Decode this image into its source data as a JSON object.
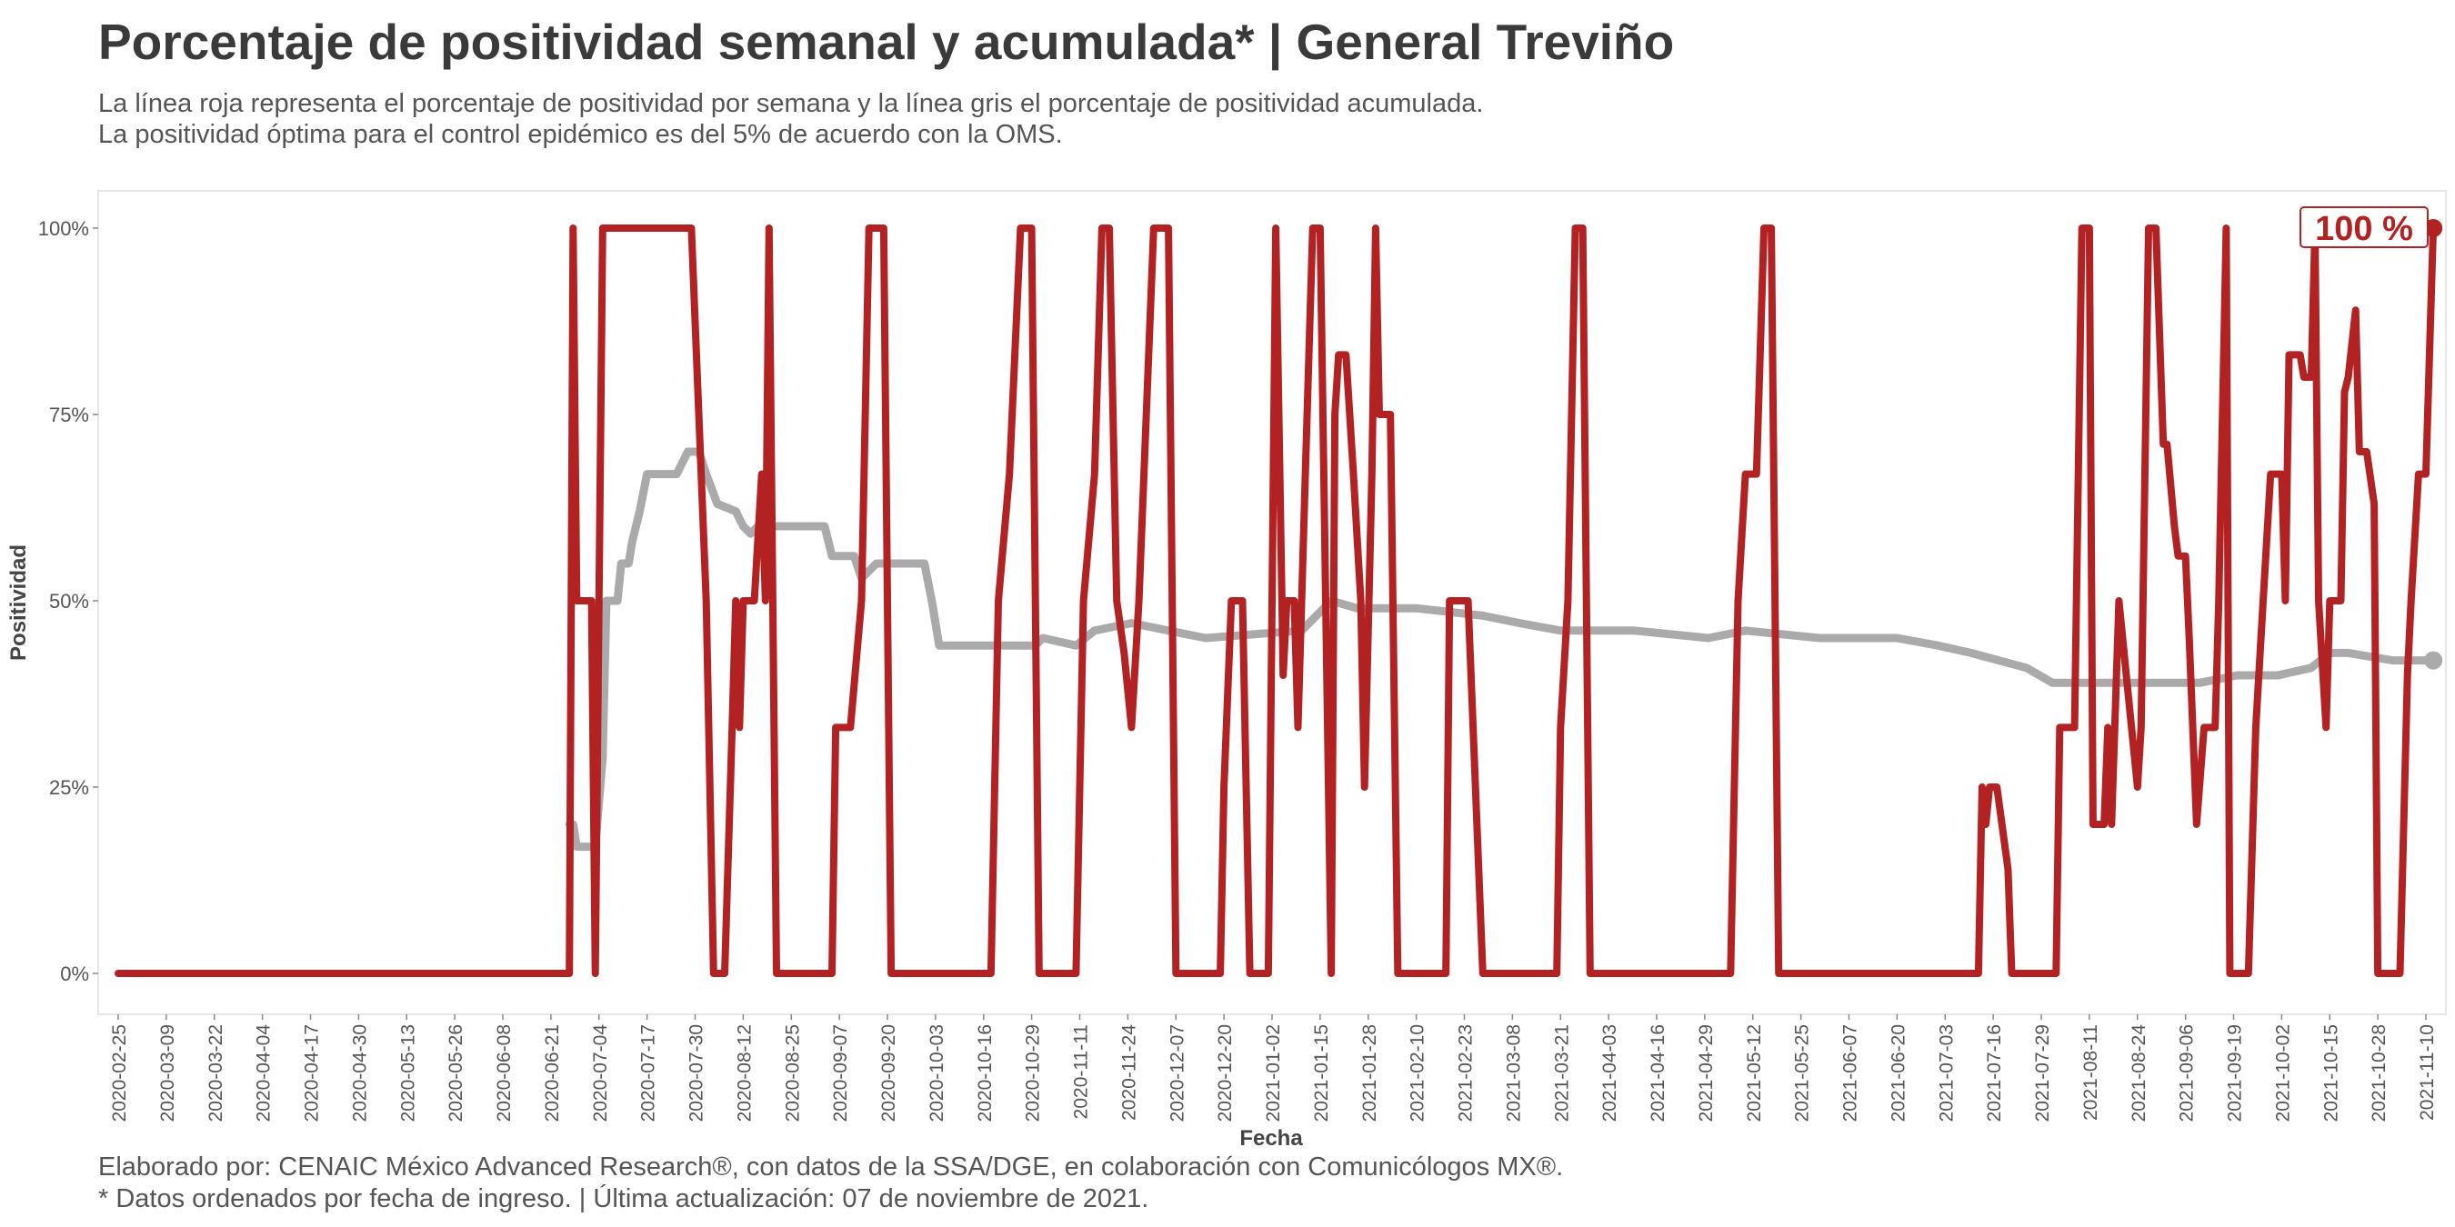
{
  "header": {
    "title": "Porcentaje de positividad semanal y acumulada* | General Treviño",
    "subtitle_line1": "La línea roja representa el porcentaje de positividad por semana y la línea gris el porcentaje de positividad acumulada.",
    "subtitle_line2": "La positividad óptima para el control epidémico es del 5% de acuerdo con la OMS."
  },
  "footer": {
    "caption_line1": "Elaborado por: CENAIC México Advanced Research®, con datos de la SSA/DGE, en colaboración con Comunicólogos MX®.",
    "caption_line2": "* Datos ordenados por fecha de ingreso. | Última actualización: 07 de noviembre de 2021."
  },
  "colors": {
    "weekly": "#b22222",
    "cumulative": "#aaaaaa",
    "panel_border": "#e6e6e6",
    "label_text": "#b22222"
  },
  "chart_data": {
    "type": "line",
    "title": "Porcentaje de positividad semanal y acumulada* | General Treviño",
    "xlabel": "Fecha",
    "ylabel": "Positividad",
    "ylim": [
      0,
      100
    ],
    "xlim": [
      "2020-02-25",
      "2021-11-10"
    ],
    "y_ticks": [
      0,
      25,
      50,
      75,
      100
    ],
    "y_tick_labels": [
      "0%",
      "25%",
      "50%",
      "75%",
      "100%"
    ],
    "x_tick_labels": [
      "2020-02-25",
      "2020-03-09",
      "2020-03-22",
      "2020-04-04",
      "2020-04-17",
      "2020-04-30",
      "2020-05-13",
      "2020-05-26",
      "2020-06-08",
      "2020-06-21",
      "2020-07-04",
      "2020-07-17",
      "2020-07-30",
      "2020-08-12",
      "2020-08-25",
      "2020-09-07",
      "2020-09-20",
      "2020-10-03",
      "2020-10-16",
      "2020-10-29",
      "2020-11-11",
      "2020-11-24",
      "2020-12-07",
      "2020-12-20",
      "2021-01-02",
      "2021-01-15",
      "2021-01-28",
      "2021-02-10",
      "2021-02-23",
      "2021-03-08",
      "2021-03-21",
      "2021-04-03",
      "2021-04-16",
      "2021-04-29",
      "2021-05-12",
      "2021-05-25",
      "2021-06-07",
      "2021-06-20",
      "2021-07-03",
      "2021-07-16",
      "2021-07-29",
      "2021-08-11",
      "2021-08-24",
      "2021-09-06",
      "2021-09-19",
      "2021-10-02",
      "2021-10-15",
      "2021-10-28",
      "2021-11-10"
    ],
    "end_label": "100 %",
    "legend": "none",
    "grid": false,
    "series": [
      {
        "name": "semanal",
        "color": "#b22222",
        "points": [
          [
            "2020-02-25",
            0
          ],
          [
            "2020-06-26",
            0
          ],
          [
            "2020-06-27",
            100
          ],
          [
            "2020-06-28",
            50
          ],
          [
            "2020-07-02",
            50
          ],
          [
            "2020-07-03",
            0
          ],
          [
            "2020-07-05",
            100
          ],
          [
            "2020-07-29",
            100
          ],
          [
            "2020-08-02",
            50
          ],
          [
            "2020-08-04",
            0
          ],
          [
            "2020-08-07",
            0
          ],
          [
            "2020-08-09",
            33
          ],
          [
            "2020-08-10",
            50
          ],
          [
            "2020-08-11",
            33
          ],
          [
            "2020-08-12",
            50
          ],
          [
            "2020-08-15",
            50
          ],
          [
            "2020-08-17",
            67
          ],
          [
            "2020-08-18",
            50
          ],
          [
            "2020-08-19",
            100
          ],
          [
            "2020-08-21",
            0
          ],
          [
            "2020-09-05",
            0
          ],
          [
            "2020-09-06",
            33
          ],
          [
            "2020-09-10",
            33
          ],
          [
            "2020-09-13",
            50
          ],
          [
            "2020-09-15",
            100
          ],
          [
            "2020-09-19",
            100
          ],
          [
            "2020-09-21",
            0
          ],
          [
            "2020-10-18",
            0
          ],
          [
            "2020-10-20",
            50
          ],
          [
            "2020-10-23",
            67
          ],
          [
            "2020-10-26",
            100
          ],
          [
            "2020-10-29",
            100
          ],
          [
            "2020-10-31",
            0
          ],
          [
            "2020-11-10",
            0
          ],
          [
            "2020-11-12",
            50
          ],
          [
            "2020-11-15",
            67
          ],
          [
            "2020-11-17",
            100
          ],
          [
            "2020-11-19",
            100
          ],
          [
            "2020-11-21",
            50
          ],
          [
            "2020-11-23",
            43
          ],
          [
            "2020-11-25",
            33
          ],
          [
            "2020-11-27",
            50
          ],
          [
            "2020-11-29",
            75
          ],
          [
            "2020-12-01",
            100
          ],
          [
            "2020-12-05",
            100
          ],
          [
            "2020-12-07",
            0
          ],
          [
            "2020-12-19",
            0
          ],
          [
            "2020-12-20",
            25
          ],
          [
            "2020-12-22",
            50
          ],
          [
            "2020-12-25",
            50
          ],
          [
            "2020-12-27",
            0
          ],
          [
            "2021-01-01",
            0
          ],
          [
            "2021-01-03",
            100
          ],
          [
            "2021-01-05",
            40
          ],
          [
            "2021-01-06",
            50
          ],
          [
            "2021-01-08",
            50
          ],
          [
            "2021-01-09",
            33
          ],
          [
            "2021-01-11",
            67
          ],
          [
            "2021-01-13",
            100
          ],
          [
            "2021-01-15",
            100
          ],
          [
            "2021-01-18",
            0
          ],
          [
            "2021-01-19",
            75
          ],
          [
            "2021-01-20",
            83
          ],
          [
            "2021-01-22",
            83
          ],
          [
            "2021-01-24",
            67
          ],
          [
            "2021-01-26",
            50
          ],
          [
            "2021-01-27",
            25
          ],
          [
            "2021-01-29",
            67
          ],
          [
            "2021-01-30",
            100
          ],
          [
            "2021-01-31",
            75
          ],
          [
            "2021-02-03",
            75
          ],
          [
            "2021-02-05",
            0
          ],
          [
            "2021-02-18",
            0
          ],
          [
            "2021-02-19",
            50
          ],
          [
            "2021-02-24",
            50
          ],
          [
            "2021-02-26",
            25
          ],
          [
            "2021-02-28",
            0
          ],
          [
            "2021-03-20",
            0
          ],
          [
            "2021-03-21",
            33
          ],
          [
            "2021-03-23",
            50
          ],
          [
            "2021-03-25",
            100
          ],
          [
            "2021-03-27",
            100
          ],
          [
            "2021-03-29",
            0
          ],
          [
            "2021-05-06",
            0
          ],
          [
            "2021-05-08",
            50
          ],
          [
            "2021-05-10",
            67
          ],
          [
            "2021-05-13",
            67
          ],
          [
            "2021-05-15",
            100
          ],
          [
            "2021-05-17",
            100
          ],
          [
            "2021-05-19",
            0
          ],
          [
            "2021-07-12",
            0
          ],
          [
            "2021-07-13",
            25
          ],
          [
            "2021-07-14",
            20
          ],
          [
            "2021-07-15",
            25
          ],
          [
            "2021-07-17",
            25
          ],
          [
            "2021-07-20",
            14
          ],
          [
            "2021-07-21",
            0
          ],
          [
            "2021-08-02",
            0
          ],
          [
            "2021-08-03",
            33
          ],
          [
            "2021-08-07",
            33
          ],
          [
            "2021-08-09",
            100
          ],
          [
            "2021-08-11",
            100
          ],
          [
            "2021-08-12",
            20
          ],
          [
            "2021-08-15",
            20
          ],
          [
            "2021-08-16",
            33
          ],
          [
            "2021-08-17",
            20
          ],
          [
            "2021-08-19",
            50
          ],
          [
            "2021-08-21",
            40
          ],
          [
            "2021-08-24",
            25
          ],
          [
            "2021-08-25",
            33
          ],
          [
            "2021-08-27",
            100
          ],
          [
            "2021-08-29",
            100
          ],
          [
            "2021-08-31",
            71
          ],
          [
            "2021-09-01",
            71
          ],
          [
            "2021-09-03",
            60
          ],
          [
            "2021-09-04",
            56
          ],
          [
            "2021-09-06",
            56
          ],
          [
            "2021-09-07",
            45
          ],
          [
            "2021-09-09",
            20
          ],
          [
            "2021-09-11",
            33
          ],
          [
            "2021-09-14",
            33
          ],
          [
            "2021-09-15",
            50
          ],
          [
            "2021-09-17",
            100
          ],
          [
            "2021-09-18",
            0
          ],
          [
            "2021-09-23",
            0
          ],
          [
            "2021-09-25",
            33
          ],
          [
            "2021-09-27",
            50
          ],
          [
            "2021-09-29",
            67
          ],
          [
            "2021-10-02",
            67
          ],
          [
            "2021-10-03",
            50
          ],
          [
            "2021-10-04",
            83
          ],
          [
            "2021-10-07",
            83
          ],
          [
            "2021-10-08",
            80
          ],
          [
            "2021-10-10",
            80
          ],
          [
            "2021-10-11",
            100
          ],
          [
            "2021-10-12",
            50
          ],
          [
            "2021-10-14",
            33
          ],
          [
            "2021-10-15",
            50
          ],
          [
            "2021-10-18",
            50
          ],
          [
            "2021-10-19",
            78
          ],
          [
            "2021-10-20",
            80
          ],
          [
            "2021-10-22",
            89
          ],
          [
            "2021-10-23",
            70
          ],
          [
            "2021-10-25",
            70
          ],
          [
            "2021-10-27",
            63
          ],
          [
            "2021-10-28",
            0
          ],
          [
            "2021-11-03",
            0
          ],
          [
            "2021-11-05",
            40
          ],
          [
            "2021-11-06",
            50
          ],
          [
            "2021-11-08",
            67
          ],
          [
            "2021-11-10",
            67
          ],
          [
            "2021-11-12",
            100
          ]
        ]
      },
      {
        "name": "acumulada",
        "color": "#aaaaaa",
        "points": [
          [
            "2020-06-26",
            20
          ],
          [
            "2020-06-27",
            20
          ],
          [
            "2020-06-28",
            17
          ],
          [
            "2020-07-03",
            17
          ],
          [
            "2020-07-05",
            29
          ],
          [
            "2020-07-06",
            50
          ],
          [
            "2020-07-09",
            50
          ],
          [
            "2020-07-10",
            55
          ],
          [
            "2020-07-12",
            55
          ],
          [
            "2020-07-13",
            58
          ],
          [
            "2020-07-15",
            62
          ],
          [
            "2020-07-17",
            67
          ],
          [
            "2020-07-25",
            67
          ],
          [
            "2020-07-28",
            70
          ],
          [
            "2020-07-31",
            70
          ],
          [
            "2020-08-02",
            67
          ],
          [
            "2020-08-05",
            63
          ],
          [
            "2020-08-10",
            62
          ],
          [
            "2020-08-12",
            60
          ],
          [
            "2020-08-14",
            59
          ],
          [
            "2020-08-16",
            60
          ],
          [
            "2020-08-25",
            60
          ],
          [
            "2020-09-03",
            60
          ],
          [
            "2020-09-05",
            56
          ],
          [
            "2020-09-11",
            56
          ],
          [
            "2020-09-13",
            53
          ],
          [
            "2020-09-17",
            55
          ],
          [
            "2020-09-30",
            55
          ],
          [
            "2020-10-02",
            50
          ],
          [
            "2020-10-04",
            44
          ],
          [
            "2020-10-30",
            44
          ],
          [
            "2020-11-01",
            45
          ],
          [
            "2020-11-10",
            44
          ],
          [
            "2020-11-15",
            46
          ],
          [
            "2020-11-25",
            47
          ],
          [
            "2020-12-05",
            46
          ],
          [
            "2020-12-15",
            45
          ],
          [
            "2021-01-10",
            46
          ],
          [
            "2021-01-18",
            50
          ],
          [
            "2021-01-25",
            49
          ],
          [
            "2021-02-01",
            49
          ],
          [
            "2021-02-10",
            49
          ],
          [
            "2021-02-28",
            48
          ],
          [
            "2021-03-10",
            47
          ],
          [
            "2021-03-21",
            46
          ],
          [
            "2021-04-10",
            46
          ],
          [
            "2021-04-30",
            45
          ],
          [
            "2021-05-10",
            46
          ],
          [
            "2021-05-30",
            45
          ],
          [
            "2021-06-20",
            45
          ],
          [
            "2021-07-01",
            44
          ],
          [
            "2021-07-10",
            43
          ],
          [
            "2021-07-25",
            41
          ],
          [
            "2021-08-01",
            39
          ],
          [
            "2021-08-10",
            39
          ],
          [
            "2021-08-20",
            39
          ],
          [
            "2021-09-01",
            39
          ],
          [
            "2021-09-10",
            39
          ],
          [
            "2021-09-20",
            40
          ],
          [
            "2021-10-01",
            40
          ],
          [
            "2021-10-10",
            41
          ],
          [
            "2021-10-15",
            43
          ],
          [
            "2021-10-20",
            43
          ],
          [
            "2021-11-01",
            42
          ],
          [
            "2021-11-12",
            42
          ]
        ]
      }
    ]
  }
}
